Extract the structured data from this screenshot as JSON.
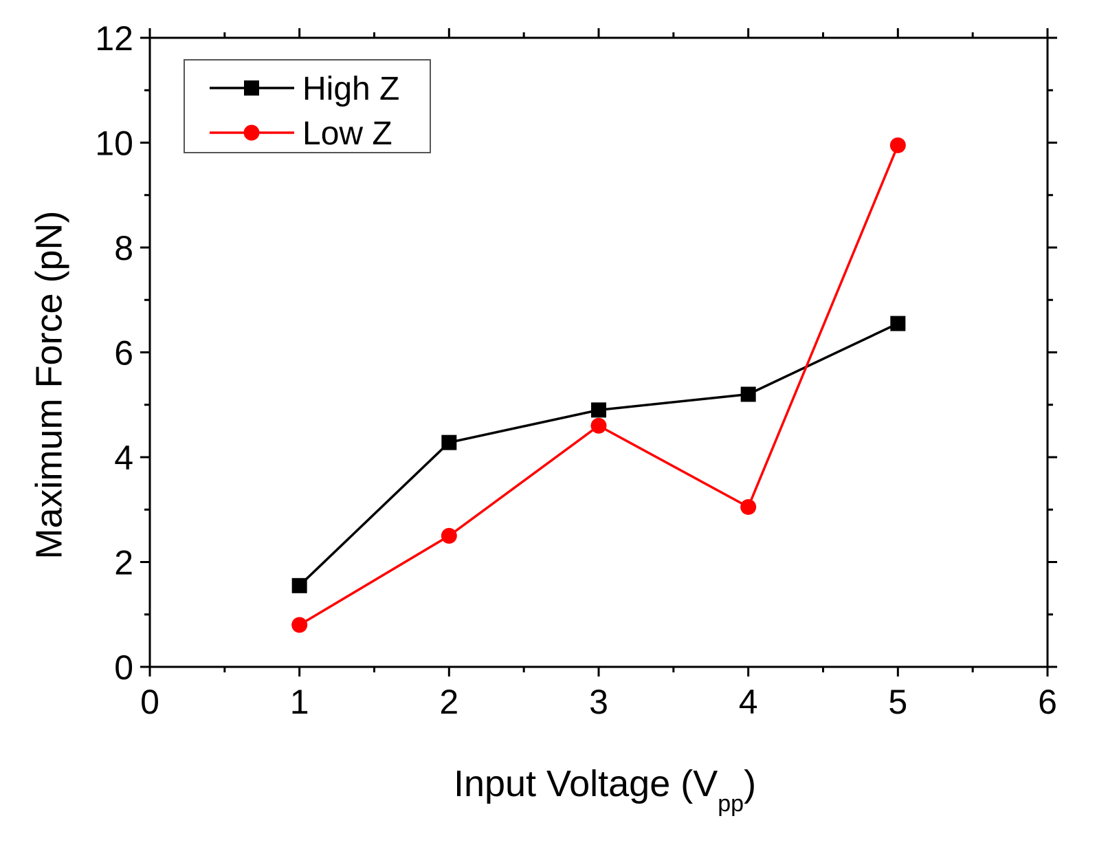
{
  "chart_data": {
    "type": "line",
    "title": "",
    "xlabel": "Input Voltage (V",
    "xlabel_subscript": "pp",
    "xlabel_close": ")",
    "ylabel": "Maximum Force (pN)",
    "xlim": [
      0,
      6
    ],
    "ylim": [
      0,
      12
    ],
    "xticks": [
      0,
      1,
      2,
      3,
      4,
      5,
      6
    ],
    "yticks": [
      0,
      2,
      4,
      6,
      8,
      10,
      12
    ],
    "xtick_labels": [
      "0",
      "1",
      "2",
      "3",
      "4",
      "5",
      "6"
    ],
    "ytick_labels": [
      "0",
      "2",
      "4",
      "6",
      "8",
      "10",
      "12"
    ],
    "x_minor_step": 0.5,
    "y_minor_step": 1,
    "grid": false,
    "legend_position": "top-left",
    "series": [
      {
        "name": "High Z",
        "color": "#000000",
        "marker": "square",
        "x": [
          1,
          2,
          3,
          4,
          5
        ],
        "y": [
          1.55,
          4.28,
          4.9,
          5.2,
          6.55
        ]
      },
      {
        "name": "Low Z",
        "color": "#ff0000",
        "marker": "circle",
        "x": [
          1,
          2,
          3,
          4,
          5
        ],
        "y": [
          0.8,
          2.5,
          4.6,
          3.05,
          9.95
        ]
      }
    ]
  }
}
